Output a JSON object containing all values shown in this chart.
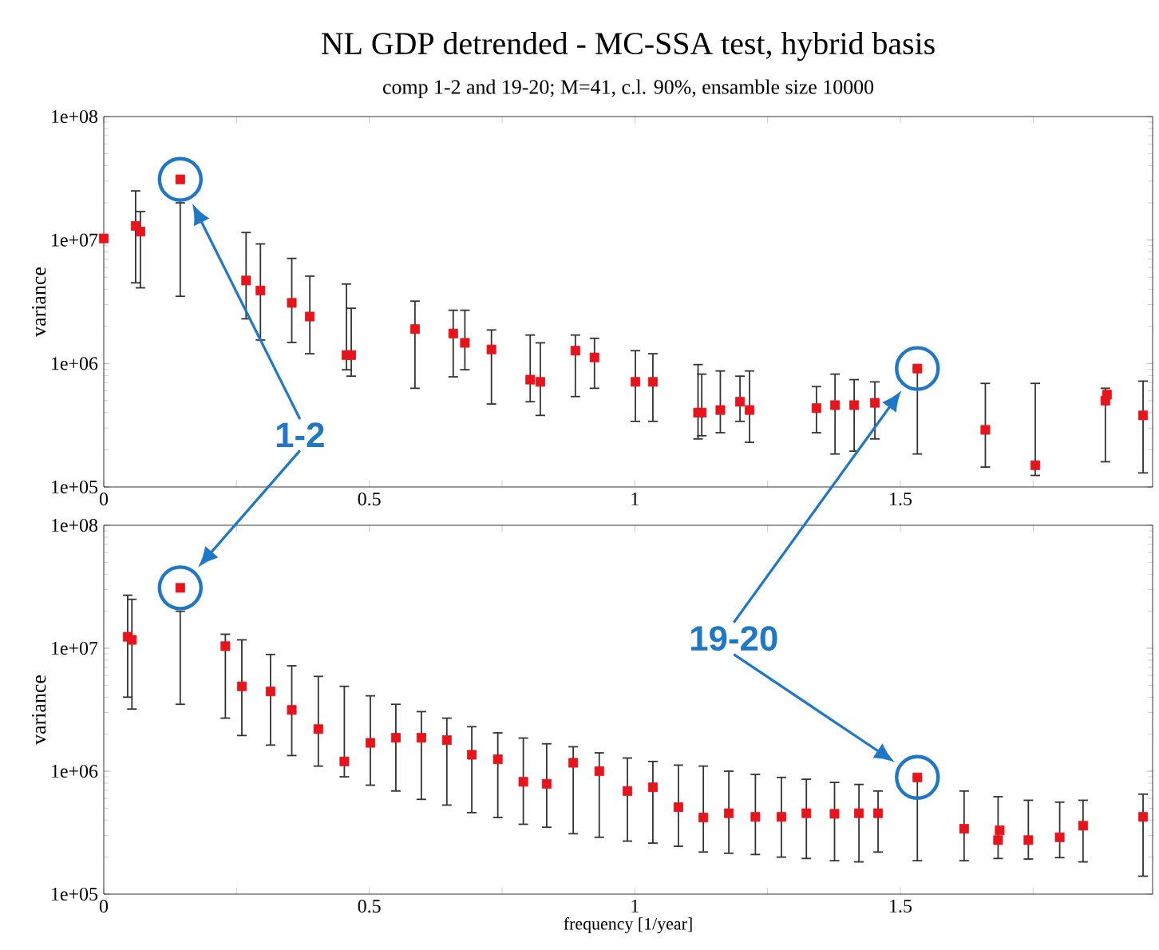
{
  "chart_data": [
    {
      "type": "scatter",
      "title": "NL GDP detrended - MC-SSA test, hybrid basis",
      "subtitle": "comp 1-2 and 19-20; M=41, c.l. 90%, ensamble size 10000",
      "ylabel": "variance",
      "log": "y",
      "marker": "square",
      "color": "#e8141c",
      "x": [
        0.0,
        0.06,
        0.069,
        0.144,
        0.268,
        0.295,
        0.354,
        0.388,
        0.457,
        0.466,
        0.586,
        0.658,
        0.68,
        0.73,
        0.803,
        0.822,
        0.888,
        0.924,
        1.001,
        1.034,
        1.119,
        1.126,
        1.161,
        1.198,
        1.216,
        1.342,
        1.377,
        1.413,
        1.452,
        1.532,
        1.66,
        1.754,
        1.886,
        1.889,
        1.957
      ],
      "values": [
        10300000.0,
        13000000.0,
        11700000.0,
        31000000.0,
        4700000.0,
        3900000.0,
        3100000.0,
        2400000.0,
        1170000.0,
        1170000.0,
        1900000.0,
        1750000.0,
        1470000.0,
        1300000.0,
        740000.0,
        710000.0,
        1270000.0,
        1120000.0,
        710000.0,
        710000.0,
        400000.0,
        400000.0,
        420000.0,
        490000.0,
        420000.0,
        435000.0,
        460000.0,
        460000.0,
        480000.0,
        910000.0,
        290000.0,
        150000.0,
        500000.0,
        560000.0,
        380000.0
      ],
      "errors": [
        null,
        [
          4500000.0,
          25000000.0
        ],
        [
          4100000.0,
          17000000.0
        ],
        [
          3500000.0,
          20000000.0
        ],
        [
          2300000.0,
          11500000.0
        ],
        [
          1550000.0,
          9300000.0
        ],
        [
          1480000.0,
          7100000.0
        ],
        [
          1200000.0,
          5100000.0
        ],
        [
          890000.0,
          4400000.0
        ],
        [
          790000.0,
          2800000.0
        ],
        [
          630000.0,
          3200000.0
        ],
        [
          780000.0,
          2700000.0
        ],
        [
          890000.0,
          2700000.0
        ],
        [
          470000.0,
          1870000.0
        ],
        [
          490000.0,
          1700000.0
        ],
        [
          380000.0,
          1470000.0
        ],
        [
          540000.0,
          1700000.0
        ],
        [
          630000.0,
          1600000.0
        ],
        [
          340000.0,
          1270000.0
        ],
        [
          340000.0,
          1200000.0
        ],
        [
          245000.0,
          980000.0
        ],
        [
          260000.0,
          820000.0
        ],
        [
          275000.0,
          870000.0
        ],
        [
          340000.0,
          790000.0
        ],
        [
          230000.0,
          870000.0
        ],
        [
          275000.0,
          650000.0
        ],
        [
          185000.0,
          820000.0
        ],
        [
          195000.0,
          740000.0
        ],
        [
          245000.0,
          710000.0
        ],
        [
          185000.0,
          910000.0
        ],
        [
          145000.0,
          690000.0
        ],
        [
          124000.0,
          690000.0
        ],
        [
          160000.0,
          630000.0
        ],
        null,
        [
          130000.0,
          720000.0
        ]
      ],
      "xlim": [
        0,
        1.975
      ],
      "ylim": [
        100000.0,
        100000000.0
      ],
      "xticks": [
        0,
        {
          "value": 0.25,
          "label": null
        },
        0.5,
        {
          "value": 0.75,
          "label": null
        },
        1,
        {
          "value": 1.25,
          "label": null
        },
        1.5,
        {
          "value": 1.75,
          "label": null
        }
      ],
      "yticks": [
        {
          "value": 100000.0,
          "label": "1e+05"
        },
        {
          "value": 1000000.0,
          "label": "1e+06"
        },
        {
          "value": 10000000.0,
          "label": "1e+07"
        },
        {
          "value": 100000000.0,
          "label": "1e+08"
        }
      ],
      "annotations": [
        "1-2",
        "19-20"
      ]
    },
    {
      "type": "scatter",
      "xlabel": "frequency [1/year]",
      "ylabel": "variance",
      "log": "y",
      "marker": "square",
      "color": "#e8141c",
      "x": [
        0.045,
        0.053,
        0.144,
        0.229,
        0.26,
        0.314,
        0.354,
        0.404,
        0.453,
        0.502,
        0.55,
        0.598,
        0.646,
        0.693,
        0.742,
        0.79,
        0.834,
        0.884,
        0.933,
        0.986,
        1.034,
        1.082,
        1.129,
        1.177,
        1.227,
        1.276,
        1.323,
        1.376,
        1.422,
        1.458,
        1.532,
        1.62,
        1.684,
        1.687,
        1.741,
        1.8,
        1.844,
        1.957
      ],
      "values": [
        12400000.0,
        11700000.0,
        31000000.0,
        10400000.0,
        4900000.0,
        4450000.0,
        3150000.0,
        2200000.0,
        1200000.0,
        1700000.0,
        1870000.0,
        1870000.0,
        1790000.0,
        1360000.0,
        1250000.0,
        820000.0,
        790000.0,
        1170000.0,
        1000000.0,
        690000.0,
        740000.0,
        510000.0,
        420000.0,
        455000.0,
        425000.0,
        425000.0,
        455000.0,
        450000.0,
        455000.0,
        455000.0,
        890000.0,
        340000.0,
        275000.0,
        330000.0,
        275000.0,
        290000.0,
        360000.0,
        425000.0
      ],
      "errors": [
        [
          4000000.0,
          27000000.0
        ],
        [
          3200000.0,
          25000000.0
        ],
        [
          3500000.0,
          20000000.0
        ],
        [
          2700000.0,
          13000000.0
        ],
        [
          1950000.0,
          11700000.0
        ],
        [
          1630000.0,
          8900000.0
        ],
        [
          1340000.0,
          7200000.0
        ],
        [
          1100000.0,
          5900000.0
        ],
        [
          900000.0,
          4900000.0
        ],
        [
          770000.0,
          4100000.0
        ],
        [
          690000.0,
          3500000.0
        ],
        [
          590000.0,
          3050000.0
        ],
        [
          530000.0,
          2700000.0
        ],
        [
          460000.0,
          2300000.0
        ],
        [
          420000.0,
          2050000.0
        ],
        [
          370000.0,
          1860000.0
        ],
        [
          350000.0,
          1670000.0
        ],
        [
          310000.0,
          1580000.0
        ],
        [
          290000.0,
          1410000.0
        ],
        [
          270000.0,
          1280000.0
        ],
        [
          260000.0,
          1200000.0
        ],
        [
          245000.0,
          1120000.0
        ],
        [
          220000.0,
          1100000.0
        ],
        [
          215000.0,
          1000000.0
        ],
        [
          210000.0,
          940000.0
        ],
        [
          200000.0,
          890000.0
        ],
        [
          195000.0,
          860000.0
        ],
        [
          187000.0,
          810000.0
        ],
        [
          183000.0,
          780000.0
        ],
        [
          220000.0,
          690000.0
        ],
        [
          187000.0,
          890000.0
        ],
        [
          187000.0,
          690000.0
        ],
        [
          195000.0,
          620000.0
        ],
        null,
        [
          193000.0,
          580000.0
        ],
        [
          198000.0,
          560000.0
        ],
        [
          183000.0,
          580000.0
        ],
        [
          140000.0,
          650000.0
        ]
      ],
      "xlim": [
        0,
        1.975
      ],
      "ylim": [
        100000.0,
        100000000.0
      ],
      "xticks": [
        0,
        {
          "value": 0.25,
          "label": null
        },
        0.5,
        {
          "value": 0.75,
          "label": null
        },
        1,
        {
          "value": 1.25,
          "label": null
        },
        1.5,
        {
          "value": 1.75,
          "label": null
        }
      ],
      "yticks": [
        {
          "value": 100000.0,
          "label": "1e+05"
        },
        {
          "value": 1000000.0,
          "label": "1e+06"
        },
        {
          "value": 10000000.0,
          "label": "1e+07"
        },
        {
          "value": 100000000.0,
          "label": "1e+08"
        }
      ]
    }
  ]
}
